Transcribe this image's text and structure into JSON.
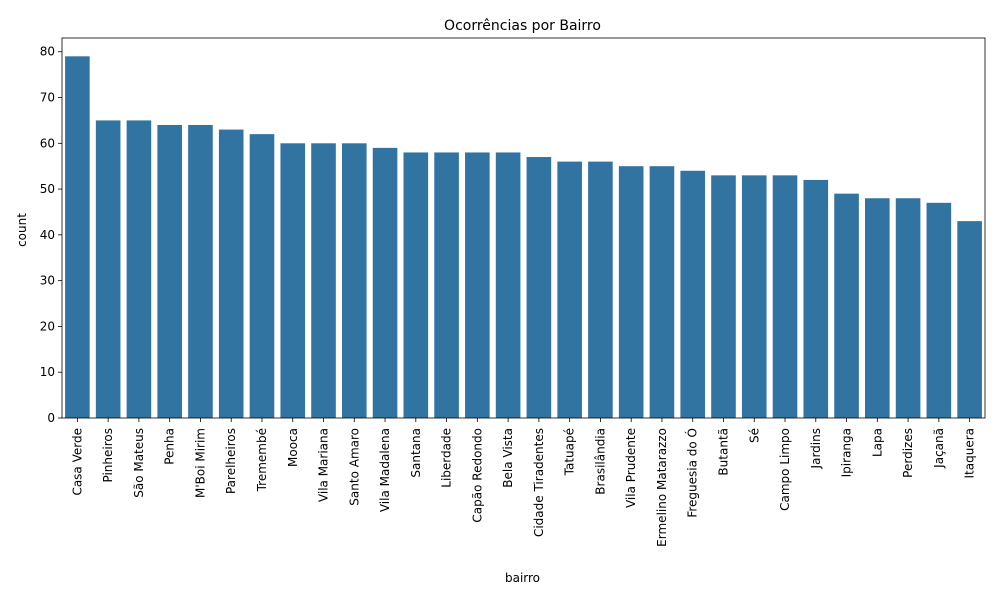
{
  "chart_data": {
    "type": "bar",
    "title": "Ocorrências por Bairro",
    "xlabel": "bairro",
    "ylabel": "count",
    "ylim": [
      0,
      83
    ],
    "yticks": [
      0,
      10,
      20,
      30,
      40,
      50,
      60,
      70,
      80
    ],
    "grid": false,
    "bar_color": "#3274a1",
    "categories": [
      "Casa Verde",
      "Pinheiros",
      "São Mateus",
      "Penha",
      "M'Boi Mirim",
      "Parelheiros",
      "Tremembé",
      "Mooca",
      "Vila Mariana",
      "Santo Amaro",
      "Vila Madalena",
      "Santana",
      "Liberdade",
      "Capão Redondo",
      "Bela Vista",
      "Cidade Tiradentes",
      "Tatuapé",
      "Brasilândia",
      "Vila Prudente",
      "Ermelino Matarazzo",
      "Freguesia do Ó",
      "Butantã",
      "Sé",
      "Campo Limpo",
      "Jardins",
      "Ipiranga",
      "Lapa",
      "Perdizes",
      "Jaçanã",
      "Itaquera"
    ],
    "values": [
      79,
      65,
      65,
      64,
      64,
      63,
      62,
      60,
      60,
      60,
      59,
      58,
      58,
      58,
      58,
      57,
      56,
      56,
      55,
      55,
      54,
      53,
      53,
      53,
      52,
      49,
      48,
      48,
      47,
      43
    ]
  }
}
